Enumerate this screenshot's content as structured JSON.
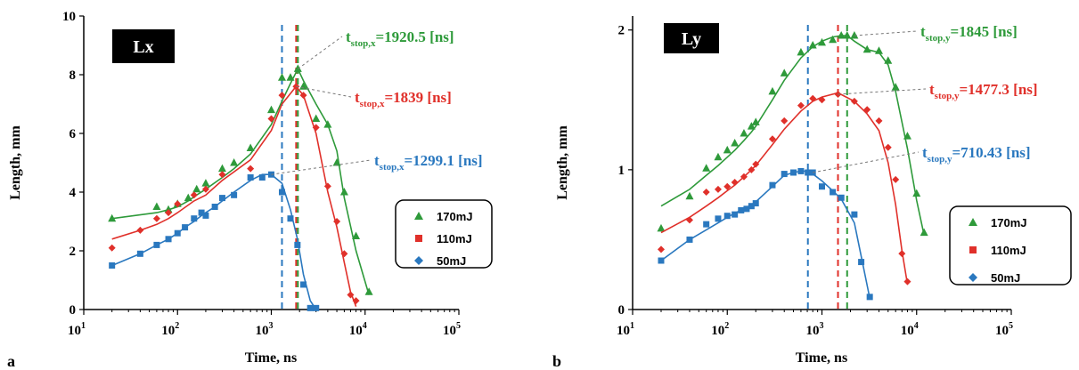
{
  "colors": {
    "c170": "#2e9a3a",
    "c110": "#e0302a",
    "c50": "#2a78bf"
  },
  "chart_data": [
    {
      "type": "scatter",
      "panel_label": "a",
      "title_box": "Lx",
      "xlabel": "Time, ns",
      "ylabel": "Length, mm",
      "xscale": "log",
      "xlim": [
        10,
        100000
      ],
      "ylim": [
        0,
        10
      ],
      "xticks": [
        {
          "base": "10",
          "exp": "1"
        },
        {
          "base": "10",
          "exp": "2"
        },
        {
          "base": "10",
          "exp": "3"
        },
        {
          "base": "10",
          "exp": "4"
        },
        {
          "base": "10",
          "exp": "5"
        }
      ],
      "yticks": [
        "0",
        "2",
        "4",
        "6",
        "8",
        "10"
      ],
      "legend": {
        "position": "right",
        "entries": [
          "170mJ",
          "110mJ",
          "50mJ"
        ]
      },
      "series": [
        {
          "name": "170mJ",
          "color": "#2e9a3a",
          "marker": "triangle",
          "x": [
            20,
            60,
            80,
            100,
            130,
            160,
            200,
            300,
            400,
            600,
            1000,
            1300,
            1600,
            1920,
            2200,
            3000,
            4000,
            5000,
            6000,
            8000,
            11000
          ],
          "y": [
            3.1,
            3.5,
            3.4,
            3.6,
            3.8,
            4.1,
            4.3,
            4.8,
            5.0,
            5.5,
            6.8,
            7.9,
            7.9,
            8.2,
            7.6,
            6.5,
            6.3,
            5.0,
            4.0,
            2.5,
            0.6
          ],
          "fit_y": [
            3.1,
            3.3,
            3.4,
            3.5,
            3.7,
            3.9,
            4.1,
            4.5,
            4.8,
            5.3,
            6.3,
            7.1,
            7.7,
            8.2,
            7.8,
            7.0,
            6.3,
            5.4,
            3.8,
            2.0,
            0.5
          ]
        },
        {
          "name": "110mJ",
          "color": "#e0302a",
          "marker": "diamond",
          "x": [
            20,
            40,
            60,
            80,
            100,
            150,
            200,
            300,
            600,
            1000,
            1300,
            1839,
            2200,
            3000,
            4000,
            5000,
            6000,
            7000,
            8000
          ],
          "y": [
            2.1,
            2.7,
            3.1,
            3.3,
            3.6,
            3.9,
            4.1,
            4.6,
            4.8,
            6.5,
            7.3,
            7.6,
            7.3,
            6.2,
            4.2,
            3.0,
            1.9,
            0.5,
            0.3
          ],
          "fit_y": [
            2.4,
            2.7,
            2.9,
            3.1,
            3.3,
            3.7,
            3.9,
            4.4,
            5.1,
            6.1,
            7.0,
            7.6,
            7.3,
            6.0,
            4.0,
            2.8,
            1.6,
            0.6,
            0.1
          ]
        },
        {
          "name": "50mJ",
          "color": "#2a78bf",
          "marker": "square",
          "x": [
            20,
            40,
            60,
            80,
            100,
            120,
            150,
            180,
            200,
            250,
            300,
            400,
            600,
            800,
            1000,
            1300,
            1600,
            1900,
            2200,
            2600,
            3000
          ],
          "y": [
            1.5,
            1.9,
            2.2,
            2.4,
            2.6,
            2.8,
            3.1,
            3.3,
            3.2,
            3.5,
            3.8,
            3.9,
            4.5,
            4.5,
            4.6,
            4.0,
            3.1,
            2.2,
            0.85,
            0.05,
            0.05
          ],
          "fit_y": [
            1.5,
            1.9,
            2.2,
            2.4,
            2.6,
            2.8,
            3.0,
            3.2,
            3.3,
            3.5,
            3.7,
            4.0,
            4.4,
            4.6,
            4.6,
            4.3,
            3.4,
            2.4,
            1.2,
            0.3,
            0.0
          ]
        }
      ],
      "vlines": [
        {
          "x": 1299.1,
          "color": "#2a78bf"
        },
        {
          "x": 1839,
          "color": "#e0302a"
        },
        {
          "x": 1920.5,
          "color": "#2e9a3a"
        }
      ],
      "annotations": [
        {
          "main": "t",
          "sub": "stop,x",
          "value": "=1920.5 [ns]",
          "color": "#2e9a3a",
          "target": [
            1920.5,
            8.2
          ]
        },
        {
          "main": "t",
          "sub": "stop,x",
          "value": "=1839 [ns]",
          "color": "#e0302a",
          "target": [
            1839,
            7.6
          ]
        },
        {
          "main": "t",
          "sub": "stop,x",
          "value": "=1299.1 [ns]",
          "color": "#2a78bf",
          "target": [
            1000,
            4.6
          ]
        }
      ]
    },
    {
      "type": "scatter",
      "panel_label": "b",
      "title_box": "Ly",
      "xlabel": "Time, ns",
      "ylabel": "Length, mm",
      "xscale": "log",
      "xlim": [
        10,
        100000
      ],
      "ylim": [
        0,
        2.1
      ],
      "xticks": [
        {
          "base": "10",
          "exp": "1"
        },
        {
          "base": "10",
          "exp": "2"
        },
        {
          "base": "10",
          "exp": "3"
        },
        {
          "base": "10",
          "exp": "4"
        },
        {
          "base": "10",
          "exp": "5"
        }
      ],
      "yticks": [
        "0",
        "1",
        "2"
      ],
      "legend": {
        "position": "right",
        "entries": [
          "170mJ",
          "110mJ",
          "50mJ"
        ]
      },
      "series": [
        {
          "name": "170mJ",
          "color": "#2e9a3a",
          "marker": "triangle",
          "x": [
            20,
            40,
            60,
            80,
            100,
            120,
            150,
            180,
            200,
            300,
            400,
            600,
            800,
            1000,
            1300,
            1600,
            1845,
            2200,
            3000,
            4000,
            5000,
            6000,
            8000,
            10000,
            12000
          ],
          "y": [
            0.58,
            0.81,
            1.01,
            1.09,
            1.14,
            1.19,
            1.26,
            1.31,
            1.34,
            1.56,
            1.69,
            1.84,
            1.89,
            1.91,
            1.93,
            1.96,
            1.96,
            1.96,
            1.86,
            1.85,
            1.78,
            1.59,
            1.24,
            0.83,
            0.55
          ],
          "fit_y": [
            0.74,
            0.86,
            0.96,
            1.03,
            1.09,
            1.14,
            1.21,
            1.27,
            1.31,
            1.5,
            1.64,
            1.8,
            1.88,
            1.92,
            1.95,
            1.96,
            1.96,
            1.92,
            1.86,
            1.84,
            1.75,
            1.56,
            1.15,
            0.78,
            0.53
          ]
        },
        {
          "name": "110mJ",
          "color": "#e0302a",
          "marker": "diamond",
          "x": [
            20,
            40,
            60,
            80,
            100,
            120,
            150,
            180,
            200,
            300,
            400,
            600,
            800,
            1000,
            1477,
            2200,
            3000,
            4000,
            5000,
            6000,
            7000,
            8000
          ],
          "y": [
            0.43,
            0.64,
            0.84,
            0.86,
            0.88,
            0.91,
            0.95,
            1.0,
            1.04,
            1.22,
            1.35,
            1.46,
            1.51,
            1.5,
            1.54,
            1.49,
            1.43,
            1.35,
            1.16,
            0.93,
            0.4,
            0.2
          ],
          "fit_y": [
            0.55,
            0.66,
            0.74,
            0.8,
            0.85,
            0.89,
            0.95,
            1.0,
            1.03,
            1.18,
            1.29,
            1.42,
            1.49,
            1.52,
            1.55,
            1.49,
            1.4,
            1.28,
            1.05,
            0.75,
            0.42,
            0.18
          ]
        },
        {
          "name": "50mJ",
          "color": "#2a78bf",
          "marker": "square",
          "x": [
            20,
            40,
            60,
            80,
            100,
            120,
            140,
            160,
            180,
            200,
            300,
            400,
            500,
            600,
            710,
            800,
            1000,
            1300,
            1600,
            2200,
            2600,
            3200
          ],
          "y": [
            0.35,
            0.5,
            0.61,
            0.65,
            0.67,
            0.68,
            0.71,
            0.72,
            0.74,
            0.76,
            0.89,
            0.97,
            0.98,
            0.99,
            0.98,
            0.98,
            0.88,
            0.84,
            0.8,
            0.68,
            0.34,
            0.09
          ],
          "fit_y": [
            0.35,
            0.5,
            0.57,
            0.62,
            0.66,
            0.69,
            0.71,
            0.73,
            0.75,
            0.77,
            0.88,
            0.96,
            0.98,
            0.99,
            0.99,
            0.97,
            0.92,
            0.85,
            0.79,
            0.62,
            0.38,
            0.08
          ]
        }
      ],
      "vlines": [
        {
          "x": 710.43,
          "color": "#2a78bf"
        },
        {
          "x": 1477.3,
          "color": "#e0302a"
        },
        {
          "x": 1845,
          "color": "#2e9a3a"
        }
      ],
      "annotations": [
        {
          "main": "t",
          "sub": "stop,y",
          "value": "=1845 [ns]",
          "color": "#2e9a3a",
          "target": [
            2200,
            1.96
          ]
        },
        {
          "main": "t",
          "sub": "stop,y",
          "value": "=1477.3 [ns]",
          "color": "#e0302a",
          "target": [
            1477.3,
            1.54
          ]
        },
        {
          "main": "t",
          "sub": "stop,y",
          "value": "=710.43 [ns]",
          "color": "#2a78bf",
          "target": [
            800,
            0.98
          ]
        }
      ]
    }
  ]
}
